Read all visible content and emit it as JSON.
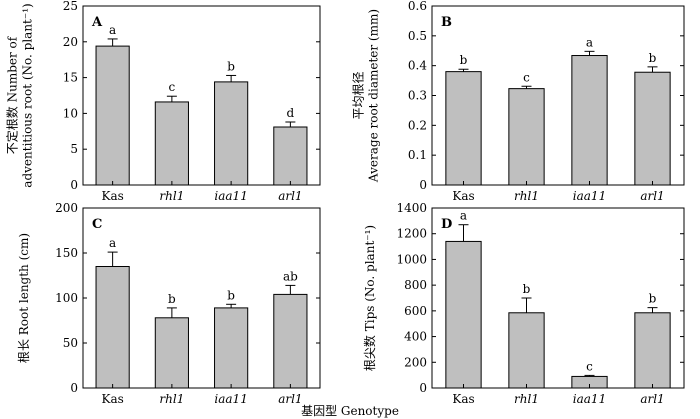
{
  "figure": {
    "xlabel": "基因型 Genotype"
  },
  "chart_data": [
    {
      "type": "bar",
      "panel": "A",
      "categories": [
        "Kas",
        "rhl1",
        "iaa11",
        "arl1"
      ],
      "values": [
        19.4,
        11.6,
        14.4,
        8.1
      ],
      "errors": [
        1.0,
        0.8,
        0.9,
        0.7
      ],
      "significance": [
        "a",
        "c",
        "b",
        "d"
      ],
      "ylabel_lines": [
        "不定根数 Number of",
        "adventitious root (No. plant⁻¹)"
      ],
      "ylim": [
        0,
        25
      ],
      "yticks": [
        "0",
        "5",
        "10",
        "15",
        "20",
        "25"
      ],
      "bar_color": "#bfbfbf"
    },
    {
      "type": "bar",
      "panel": "B",
      "categories": [
        "Kas",
        "rhl1",
        "iaa11",
        "arl1"
      ],
      "values": [
        0.38,
        0.323,
        0.434,
        0.378
      ],
      "errors": [
        0.008,
        0.008,
        0.014,
        0.018
      ],
      "significance": [
        "b",
        "c",
        "a",
        "b"
      ],
      "ylabel_lines": [
        "平均根径",
        "Average root diameter (mm)"
      ],
      "ylim": [
        0,
        0.6
      ],
      "yticks": [
        "0",
        "0.1",
        "0.2",
        "0.3",
        "0.4",
        "0.5",
        "0.6"
      ],
      "bar_color": "#bfbfbf"
    },
    {
      "type": "bar",
      "panel": "C",
      "categories": [
        "Kas",
        "rhl1",
        "iaa11",
        "arl1"
      ],
      "values": [
        135,
        78,
        89,
        104
      ],
      "errors": [
        16,
        11,
        4,
        10
      ],
      "significance": [
        "a",
        "b",
        "b",
        "ab"
      ],
      "ylabel_lines": [
        "根长 Root length (cm)"
      ],
      "ylim": [
        0,
        200
      ],
      "yticks": [
        "0",
        "50",
        "100",
        "150",
        "200"
      ],
      "bar_color": "#bfbfbf"
    },
    {
      "type": "bar",
      "panel": "D",
      "categories": [
        "Kas",
        "rhl1",
        "iaa11",
        "arl1"
      ],
      "values": [
        1140,
        585,
        90,
        585
      ],
      "errors": [
        130,
        115,
        8,
        40
      ],
      "significance": [
        "a",
        "b",
        "c",
        "b"
      ],
      "ylabel_lines": [
        "根尖数 Tips (No. plant⁻¹)"
      ],
      "ylim": [
        0,
        1400
      ],
      "yticks": [
        "0",
        "200",
        "400",
        "600",
        "800",
        "1000",
        "1200",
        "1400"
      ],
      "bar_color": "#bfbfbf"
    }
  ]
}
